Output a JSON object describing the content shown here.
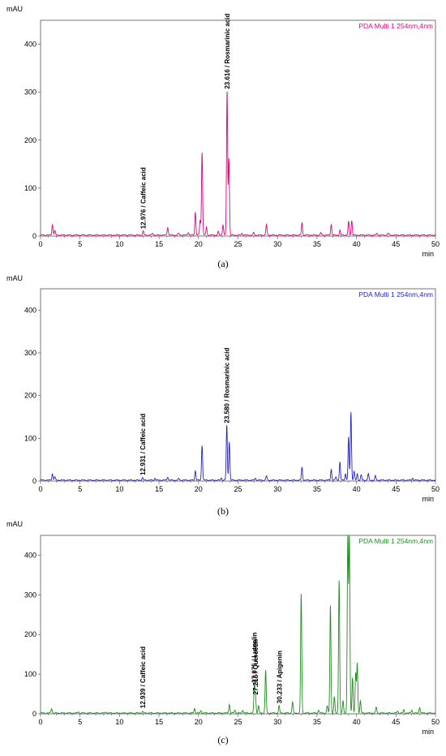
{
  "chart_data": [
    {
      "type": "line",
      "panel_label": "(a)",
      "series_label": "PDA Multi 1 254nm,4nm",
      "color": "#e6007e",
      "ylabel": "mAU",
      "xlabel": "min",
      "xlim": [
        0,
        50
      ],
      "ylim": [
        0,
        450
      ],
      "x_ticks": [
        0,
        5,
        10,
        15,
        20,
        25,
        30,
        35,
        40,
        45,
        50
      ],
      "y_ticks": [
        0,
        100,
        200,
        300,
        400
      ],
      "annotations": [
        {
          "x": 12.976,
          "text": "12.976 / Caffeic acid"
        },
        {
          "x": 23.616,
          "text": "23.616 / Rosmarinic acid"
        }
      ],
      "baseline": 2,
      "peaks": [
        [
          1.5,
          22
        ],
        [
          1.8,
          10
        ],
        [
          13.0,
          8
        ],
        [
          14.2,
          4
        ],
        [
          16.1,
          17
        ],
        [
          17.5,
          4
        ],
        [
          18.7,
          6
        ],
        [
          19.6,
          48
        ],
        [
          20.2,
          30
        ],
        [
          20.45,
          173
        ],
        [
          21.0,
          16
        ],
        [
          22.5,
          7
        ],
        [
          23.1,
          22
        ],
        [
          23.616,
          300
        ],
        [
          23.85,
          160
        ],
        [
          25.5,
          4
        ],
        [
          27.0,
          5
        ],
        [
          28.6,
          22
        ],
        [
          33.1,
          25
        ],
        [
          35.5,
          5
        ],
        [
          36.8,
          22
        ],
        [
          37.9,
          10
        ],
        [
          39.0,
          28
        ],
        [
          39.4,
          30
        ],
        [
          42.6,
          4
        ],
        [
          44.0,
          4
        ]
      ]
    },
    {
      "type": "line",
      "panel_label": "(b)",
      "series_label": "PDA Multi 1 254nm,4nm",
      "color": "#2222cc",
      "ylabel": "mAU",
      "xlabel": "min",
      "xlim": [
        0,
        50
      ],
      "ylim": [
        0,
        450
      ],
      "x_ticks": [
        0,
        5,
        10,
        15,
        20,
        25,
        30,
        35,
        40,
        45,
        50
      ],
      "y_ticks": [
        0,
        100,
        200,
        300,
        400
      ],
      "annotations": [
        {
          "x": 12.931,
          "text": "12.931 / Caffeic acid"
        },
        {
          "x": 23.58,
          "text": "23.580 / Rosmarinic acid"
        }
      ],
      "baseline": 2,
      "peaks": [
        [
          1.5,
          15
        ],
        [
          1.8,
          8
        ],
        [
          12.9,
          6
        ],
        [
          14.5,
          5
        ],
        [
          16.1,
          8
        ],
        [
          17.5,
          4
        ],
        [
          19.6,
          22
        ],
        [
          20.45,
          82
        ],
        [
          22.9,
          5
        ],
        [
          23.58,
          128
        ],
        [
          23.9,
          90
        ],
        [
          27.2,
          5
        ],
        [
          28.6,
          10
        ],
        [
          33.1,
          30
        ],
        [
          36.8,
          25
        ],
        [
          37.4,
          8
        ],
        [
          37.9,
          42
        ],
        [
          38.6,
          15
        ],
        [
          39.0,
          100
        ],
        [
          39.3,
          160
        ],
        [
          39.7,
          20
        ],
        [
          40.1,
          15
        ],
        [
          40.6,
          12
        ],
        [
          41.5,
          15
        ],
        [
          42.4,
          10
        ],
        [
          47.1,
          5
        ]
      ]
    },
    {
      "type": "line",
      "panel_label": "(c)",
      "series_label": "PDA Multi 1 254nm,4nm",
      "color": "#1f8f1f",
      "ylabel": "mAU",
      "xlabel": "min",
      "xlim": [
        0,
        50
      ],
      "ylim": [
        0,
        450
      ],
      "x_ticks": [
        0,
        5,
        10,
        15,
        20,
        25,
        30,
        35,
        40,
        45,
        50
      ],
      "y_ticks": [
        0,
        100,
        200,
        300,
        400
      ],
      "annotations": [
        {
          "x": 12.939,
          "text": "12.939 / Caffeic acid"
        },
        {
          "x": 27.075,
          "text": "27.075 / Luteolin"
        },
        {
          "x": 27.213,
          "text": "27.213 / Quercetin"
        },
        {
          "x": 30.233,
          "text": "30.233 / Apigenin"
        }
      ],
      "baseline": 2,
      "peaks": [
        [
          1.4,
          12
        ],
        [
          4.8,
          3
        ],
        [
          8.3,
          3
        ],
        [
          12.9,
          4
        ],
        [
          19.5,
          12
        ],
        [
          20.3,
          6
        ],
        [
          23.9,
          22
        ],
        [
          24.6,
          8
        ],
        [
          25.6,
          8
        ],
        [
          27.075,
          70
        ],
        [
          27.213,
          40
        ],
        [
          27.6,
          18
        ],
        [
          28.5,
          108
        ],
        [
          30.2,
          18
        ],
        [
          31.9,
          28
        ],
        [
          33.0,
          300
        ],
        [
          35.2,
          8
        ],
        [
          36.3,
          18
        ],
        [
          36.7,
          272
        ],
        [
          37.2,
          40
        ],
        [
          37.8,
          335
        ],
        [
          38.3,
          30
        ],
        [
          38.9,
          450
        ],
        [
          39.1,
          450
        ],
        [
          39.5,
          90
        ],
        [
          39.9,
          100
        ],
        [
          40.1,
          125
        ],
        [
          40.5,
          30
        ],
        [
          42.5,
          15
        ],
        [
          45.2,
          5
        ],
        [
          46.0,
          8
        ],
        [
          47.0,
          8
        ],
        [
          48.0,
          15
        ]
      ]
    }
  ]
}
